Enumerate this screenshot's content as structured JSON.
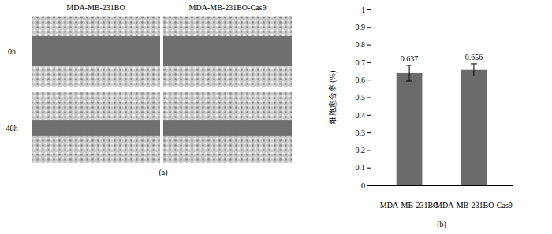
{
  "panel_a": {
    "columns": [
      "MDA-MB-231BO",
      "MDA-MB-231BO-Cas9"
    ],
    "rows": [
      "0h",
      "48h"
    ],
    "label": "(a)"
  },
  "chart_data": {
    "type": "bar",
    "label": "(b)",
    "y_label": "细胞愈合率 (%)",
    "categories": [
      "MDA-MB-231BO",
      "MDA-MB-231BO-Cas9"
    ],
    "values": [
      0.637,
      0.656
    ],
    "errors": [
      0.045,
      0.035
    ],
    "color": "#6b6b6b",
    "ylim": [
      0,
      1
    ],
    "yticks": [
      0,
      0.1,
      0.2,
      0.3,
      0.4,
      0.5,
      0.6,
      0.7,
      0.8,
      0.9,
      1
    ],
    "data_labels": true,
    "grid": false
  }
}
